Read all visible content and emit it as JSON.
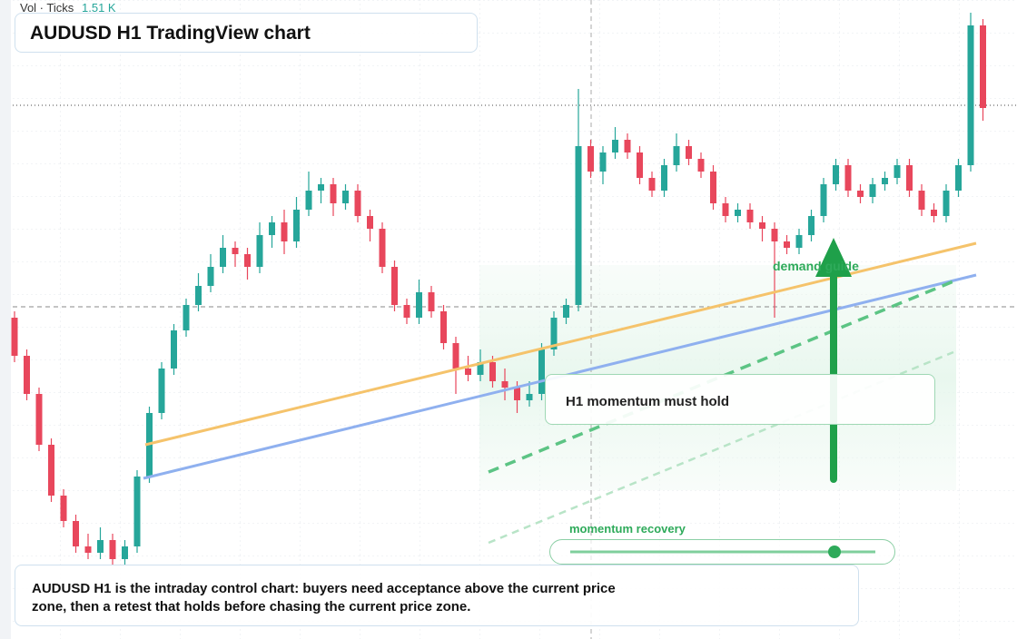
{
  "header": {
    "volume_label": "Vol · Ticks",
    "volume_value": "1.51 K",
    "title": "AUDUSD H1 TradingView chart"
  },
  "annotations": {
    "demand": "demand guide",
    "hold": "H1 momentum must hold",
    "momentum": "momentum recovery"
  },
  "note": "AUDUSD H1 is the intraday control chart: buyers need acceptance above the current price zone, then a retest that holds before chasing the current price zone.",
  "chart_data": {
    "type": "candlestick",
    "up_color": "#26a69a",
    "down_color": "#e8475c",
    "ohlc": [
      [
        50,
        51,
        43,
        44
      ],
      [
        44,
        45,
        37,
        38
      ],
      [
        38,
        39,
        29,
        30
      ],
      [
        30,
        31,
        21,
        22
      ],
      [
        22,
        23,
        17,
        18
      ],
      [
        18,
        19,
        13,
        14
      ],
      [
        14,
        16,
        12,
        13
      ],
      [
        13,
        17,
        12,
        15
      ],
      [
        15,
        16,
        11,
        12
      ],
      [
        12,
        15,
        11,
        14
      ],
      [
        14,
        26,
        13,
        25
      ],
      [
        25,
        36,
        24,
        35
      ],
      [
        35,
        43,
        34,
        42
      ],
      [
        42,
        49,
        41,
        48
      ],
      [
        48,
        53,
        47,
        52
      ],
      [
        52,
        57,
        51,
        55
      ],
      [
        55,
        60,
        54,
        58
      ],
      [
        58,
        63,
        57,
        61
      ],
      [
        61,
        62,
        58,
        60
      ],
      [
        60,
        61,
        56,
        58
      ],
      [
        58,
        65,
        57,
        63
      ],
      [
        63,
        66,
        61,
        65
      ],
      [
        65,
        67,
        60,
        62
      ],
      [
        62,
        69,
        61,
        67
      ],
      [
        67,
        73,
        66,
        70
      ],
      [
        70,
        72,
        68,
        71
      ],
      [
        71,
        72,
        66,
        68
      ],
      [
        68,
        71,
        67,
        70
      ],
      [
        70,
        71,
        65,
        66
      ],
      [
        66,
        67,
        62,
        64
      ],
      [
        64,
        65,
        57,
        58
      ],
      [
        58,
        59,
        51,
        52
      ],
      [
        52,
        53,
        49,
        50
      ],
      [
        50,
        56,
        49,
        54
      ],
      [
        54,
        55,
        50,
        51
      ],
      [
        51,
        52,
        45,
        46
      ],
      [
        46,
        47,
        38,
        42
      ],
      [
        42,
        44,
        40,
        41
      ],
      [
        41,
        45,
        40,
        43
      ],
      [
        43,
        44,
        39,
        40
      ],
      [
        40,
        42,
        37,
        39
      ],
      [
        39,
        40,
        35,
        37
      ],
      [
        37,
        40,
        36,
        38
      ],
      [
        38,
        46,
        37,
        45
      ],
      [
        45,
        51,
        44,
        50
      ],
      [
        50,
        53,
        49,
        52
      ],
      [
        52,
        86,
        51,
        77
      ],
      [
        77,
        78,
        72,
        73
      ],
      [
        73,
        77,
        71,
        76
      ],
      [
        76,
        80,
        75,
        78
      ],
      [
        78,
        79,
        75,
        76
      ],
      [
        76,
        77,
        71,
        72
      ],
      [
        72,
        73,
        69,
        70
      ],
      [
        70,
        75,
        69,
        74
      ],
      [
        74,
        79,
        73,
        77
      ],
      [
        77,
        78,
        74,
        75
      ],
      [
        75,
        76,
        72,
        73
      ],
      [
        73,
        74,
        67,
        68
      ],
      [
        68,
        69,
        65,
        66
      ],
      [
        66,
        68,
        65,
        67
      ],
      [
        67,
        68,
        64,
        65
      ],
      [
        65,
        66,
        62,
        64
      ],
      [
        64,
        65,
        50,
        62
      ],
      [
        62,
        63,
        60,
        61
      ],
      [
        61,
        64,
        60,
        63
      ],
      [
        63,
        67,
        62,
        66
      ],
      [
        66,
        72,
        65,
        71
      ],
      [
        71,
        75,
        70,
        74
      ],
      [
        74,
        75,
        69,
        70
      ],
      [
        70,
        71,
        68,
        69
      ],
      [
        69,
        72,
        68,
        71
      ],
      [
        71,
        73,
        70,
        72
      ],
      [
        72,
        75,
        71,
        74
      ],
      [
        74,
        75,
        69,
        70
      ],
      [
        70,
        71,
        66,
        67
      ],
      [
        67,
        68,
        65,
        66
      ],
      [
        66,
        71,
        65,
        70
      ],
      [
        70,
        75,
        69,
        74
      ],
      [
        74,
        98,
        73,
        96
      ],
      [
        96,
        97,
        81,
        83
      ]
    ]
  }
}
